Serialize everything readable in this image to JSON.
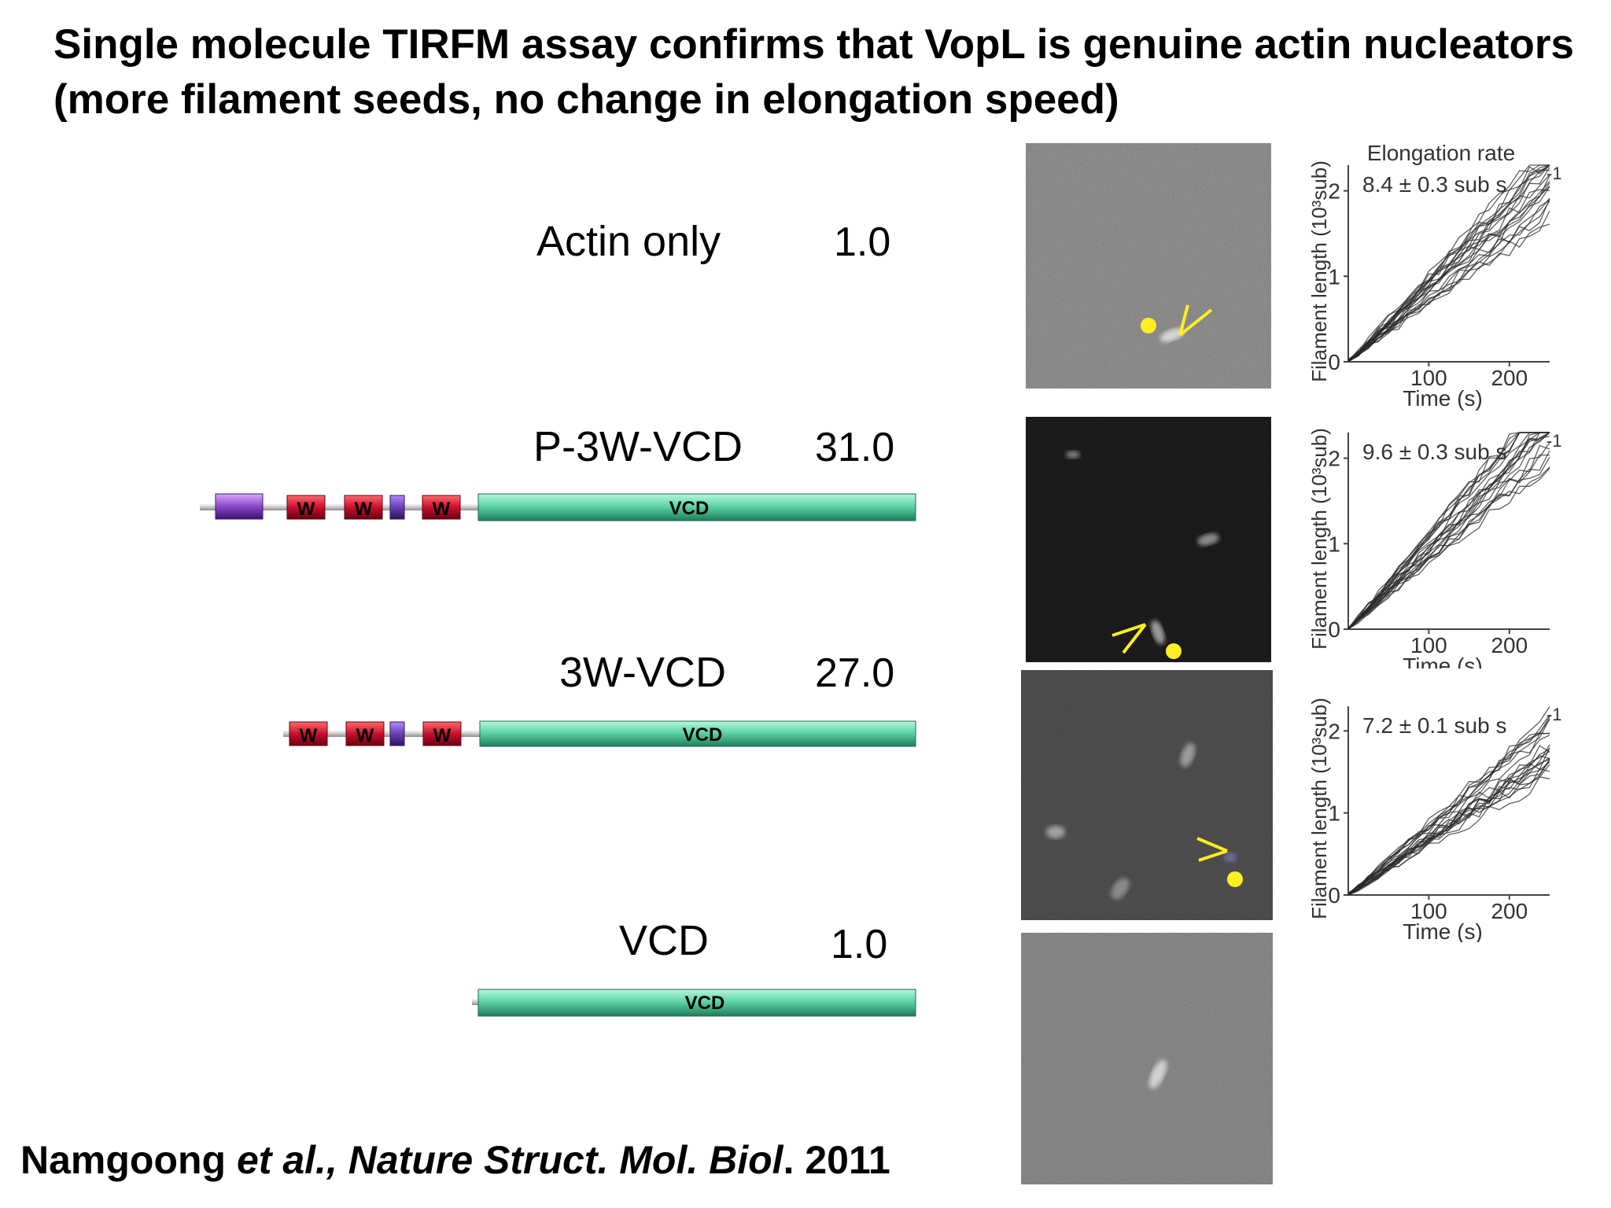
{
  "slide": {
    "title": "Single molecule TIRFM assay confirms that VopL is genuine actin nucleators (more filament seeds, no change in elongation speed)",
    "citation": {
      "authors": "Namgoong",
      "etal": "et al.,",
      "journal": "Nature Struct. Mol. Biol",
      "year": ". 2011"
    }
  },
  "conditions": [
    {
      "label": "Actin only",
      "value": "1.0",
      "construct": []
    },
    {
      "label": "P-3W-VCD",
      "value": "31.0",
      "construct": [
        "P",
        "W",
        "W",
        "linker",
        "W",
        "VCD"
      ]
    },
    {
      "label": "3W-VCD",
      "value": "27.0",
      "construct": [
        "W",
        "W",
        "linker",
        "W",
        "VCD"
      ]
    },
    {
      "label": "VCD",
      "value": "1.0",
      "construct": [
        "VCD"
      ]
    }
  ],
  "construct_labels": {
    "w": "W",
    "vcd": "VCD"
  },
  "colors": {
    "w_domain": "#c8102e",
    "proline_domain": "#7d3fb5",
    "linker_domain": "#6a3fb5",
    "vcd_domain": "#5ed6a8",
    "marker": "#ffee22"
  },
  "plots": {
    "panel_title": "Elongation rate",
    "ylabel": "Filament length (10³sub)",
    "xlabel": "Time (s)",
    "xticks": [
      "100",
      "200"
    ],
    "yticks": [
      "0",
      "1",
      "2"
    ],
    "panels": [
      {
        "rate_label": "8.4 ± 0.3 sub s",
        "exp": "-1",
        "rate": 8.4,
        "ylim": [
          0,
          2.3
        ]
      },
      {
        "rate_label": "9.6 ± 0.3 sub s",
        "exp": "-1",
        "rate": 9.6,
        "ylim": [
          0,
          2.3
        ]
      },
      {
        "rate_label": "7.2 ± 0.1 sub s",
        "exp": "-1",
        "rate": 7.2,
        "ylim": [
          0,
          2.3
        ]
      }
    ]
  }
}
